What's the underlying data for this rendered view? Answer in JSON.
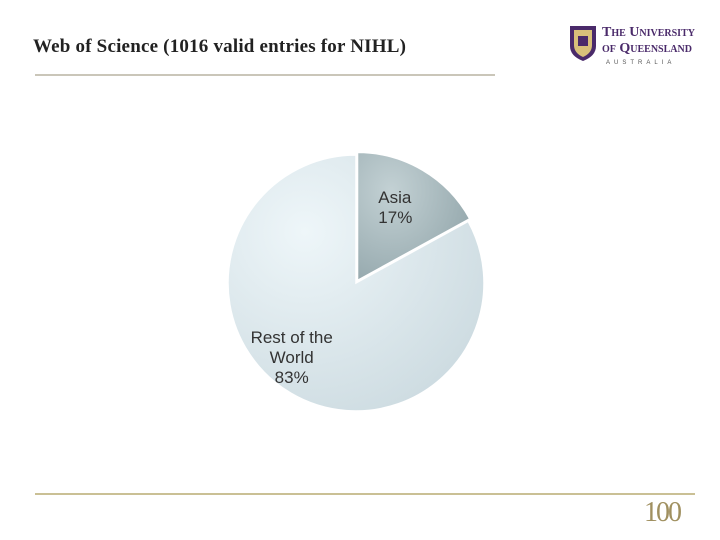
{
  "chart_data": {
    "type": "pie",
    "title": "Web of Science (1016 valid entries for NIHL)",
    "categories": [
      "Asia",
      "Rest of the World"
    ],
    "values": [
      17,
      83
    ],
    "value_labels": [
      "17%",
      "83%"
    ],
    "colors": [
      "#a3b6ba",
      "#dde9ee"
    ]
  },
  "logo": {
    "line1": "The University",
    "line2": "of Queensland",
    "country": "Australia",
    "anniversary": "100"
  }
}
